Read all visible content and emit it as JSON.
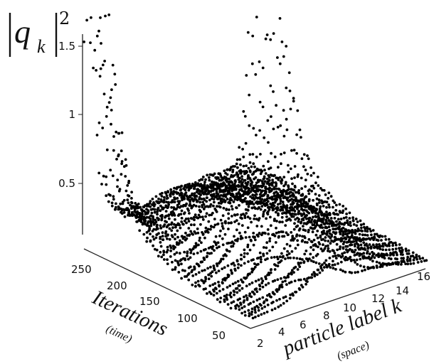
{
  "chart_data": {
    "type": "scatter",
    "projection": "3d",
    "z_label_base": "q",
    "z_label_sub": "k",
    "z_label_exp": "2",
    "x_label": "particle label k",
    "x_sublabel": "(space)",
    "y_label": "Iterations",
    "y_sublabel": "(time)",
    "x_ticks": [
      "2",
      "4",
      "6",
      "8",
      "10",
      "12",
      "14",
      "16"
    ],
    "y_ticks": [
      "50",
      "100",
      "150",
      "200",
      "250"
    ],
    "z_ticks": [
      "0.5",
      "1",
      "1.5"
    ],
    "x_range": [
      1,
      16
    ],
    "y_range": [
      20,
      260
    ],
    "z_range": [
      0,
      1.8
    ],
    "marker_color": "#000000",
    "series": [
      {
        "peaks": [
          {
            "k": 2,
            "iteration": 250,
            "max_value": 1.8
          },
          {
            "k": 16,
            "iteration": 250,
            "max_value": 1.8
          }
        ],
        "central_ridge_max_value": 0.55,
        "baseline_value": 0.05
      }
    ]
  }
}
